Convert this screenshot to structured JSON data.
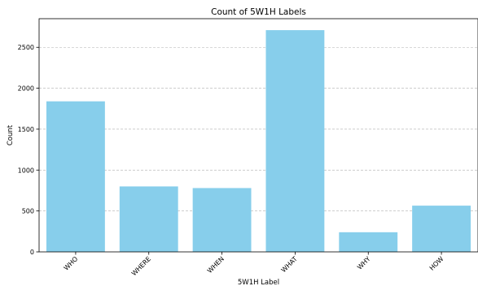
{
  "chart_data": {
    "type": "bar",
    "title": "Count of 5W1H Labels",
    "xlabel": "5W1H Label",
    "ylabel": "Count",
    "categories": [
      "WHO",
      "WHERE",
      "WHEN",
      "WHAT",
      "WHY",
      "HOW"
    ],
    "values": [
      1840,
      800,
      780,
      2710,
      240,
      565
    ],
    "ylim": [
      0,
      2850
    ],
    "yticks": [
      0,
      500,
      1000,
      1500,
      2000,
      2500
    ],
    "grid": "y-dashed",
    "bar_color": "#87ceeb"
  }
}
